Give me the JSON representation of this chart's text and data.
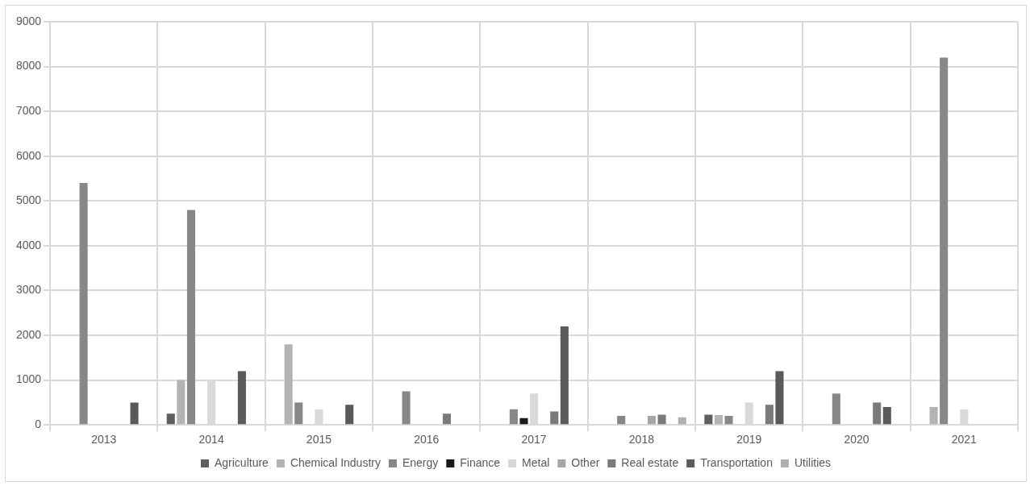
{
  "chart_data": {
    "type": "bar",
    "categories": [
      "2013",
      "2014",
      "2015",
      "2016",
      "2017",
      "2018",
      "2019",
      "2020",
      "2021"
    ],
    "series": [
      {
        "name": "Agriculture",
        "color": "#5f5f5f",
        "values": [
          null,
          250,
          null,
          null,
          null,
          null,
          230,
          null,
          null
        ]
      },
      {
        "name": "Chemical Industry",
        "color": "#b3b3b3",
        "values": [
          null,
          1000,
          1800,
          null,
          null,
          null,
          220,
          null,
          400
        ]
      },
      {
        "name": "Energy",
        "color": "#878787",
        "values": [
          5400,
          4800,
          500,
          750,
          350,
          200,
          200,
          700,
          8200
        ]
      },
      {
        "name": "Finance",
        "color": "#1a1a1a",
        "values": [
          null,
          null,
          null,
          null,
          150,
          null,
          null,
          null,
          null
        ]
      },
      {
        "name": "Metal",
        "color": "#d9d9d9",
        "values": [
          null,
          1000,
          350,
          null,
          700,
          null,
          500,
          null,
          350
        ]
      },
      {
        "name": "Other",
        "color": "#a6a6a6",
        "values": [
          null,
          null,
          null,
          null,
          null,
          200,
          null,
          null,
          null
        ]
      },
      {
        "name": "Real estate",
        "color": "#7a7a7a",
        "values": [
          null,
          null,
          null,
          250,
          300,
          230,
          450,
          500,
          null
        ]
      },
      {
        "name": "Transportation",
        "color": "#5a5a5a",
        "values": [
          500,
          1200,
          450,
          null,
          2200,
          null,
          1200,
          400,
          null
        ]
      },
      {
        "name": "Utilities",
        "color": "#b0b0b0",
        "values": [
          null,
          null,
          null,
          null,
          null,
          170,
          null,
          null,
          null
        ]
      }
    ],
    "ylim": [
      0,
      9000
    ],
    "yticks": [
      0,
      1000,
      2000,
      3000,
      4000,
      5000,
      6000,
      7000,
      8000,
      9000
    ],
    "grid": true,
    "legend": "bottom"
  }
}
